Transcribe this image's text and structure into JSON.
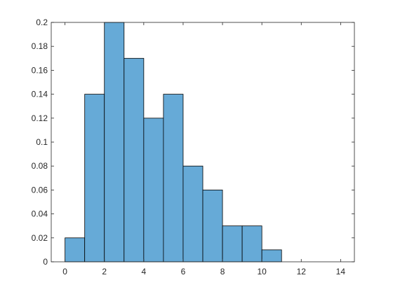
{
  "chart_data": {
    "type": "histogram",
    "bins": [
      0,
      1,
      2,
      3,
      4,
      5,
      6,
      7,
      8,
      9,
      10,
      11
    ],
    "values": [
      0.02,
      0.14,
      0.2,
      0.17,
      0.12,
      0.14,
      0.08,
      0.06,
      0.03,
      0.03,
      0.01
    ],
    "color": "#66aad7",
    "xlim": [
      -0.7,
      14.7
    ],
    "xticks": [
      0,
      2,
      4,
      6,
      8,
      10,
      12,
      14
    ],
    "ylim": [
      0,
      0.2
    ],
    "yticks": [
      0,
      0.02,
      0.04,
      0.06,
      0.08,
      0.1,
      0.12,
      0.14,
      0.16,
      0.18,
      0.2
    ]
  }
}
